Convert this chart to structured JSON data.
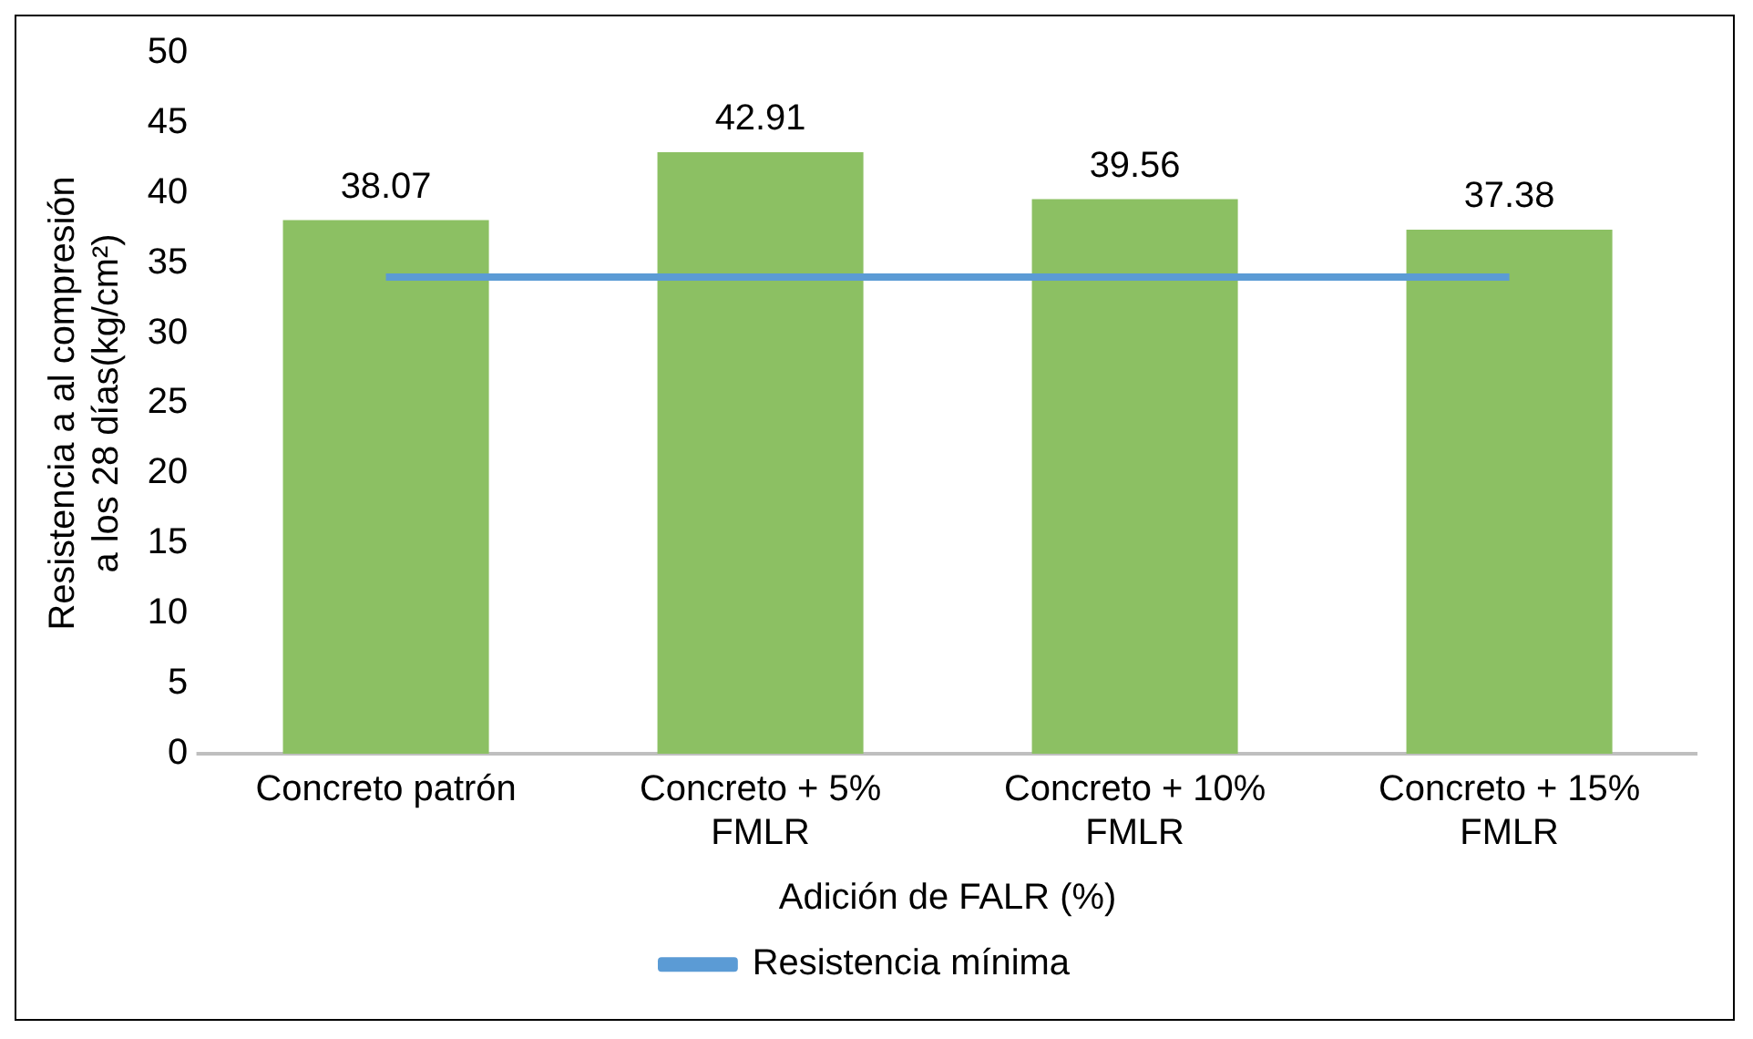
{
  "chart_data": {
    "type": "bar",
    "xlabel": "Adición de FALR (%)",
    "ylabel": "Resistencia a al compresión a los 28 días(kg/cm²)",
    "categories": [
      "Concreto patrón",
      "Concreto + 5% FMLR",
      "Concreto + 10% FMLR",
      "Concreto + 15% FMLR"
    ],
    "series": [
      {
        "color": "#8cc063",
        "values": [
          38.07,
          42.91,
          39.56,
          37.38
        ],
        "data_labels": true
      },
      {
        "type": "line",
        "name": "Resistencia mínima",
        "color": "#5b9bd5",
        "values": [
          34,
          34,
          34,
          34
        ],
        "marker": "none"
      }
    ],
    "ylim": [
      0,
      50
    ],
    "yticks": [
      0,
      5,
      10,
      15,
      20,
      25,
      30,
      35,
      40,
      45,
      50
    ],
    "grid": false,
    "legend": "bottom"
  }
}
